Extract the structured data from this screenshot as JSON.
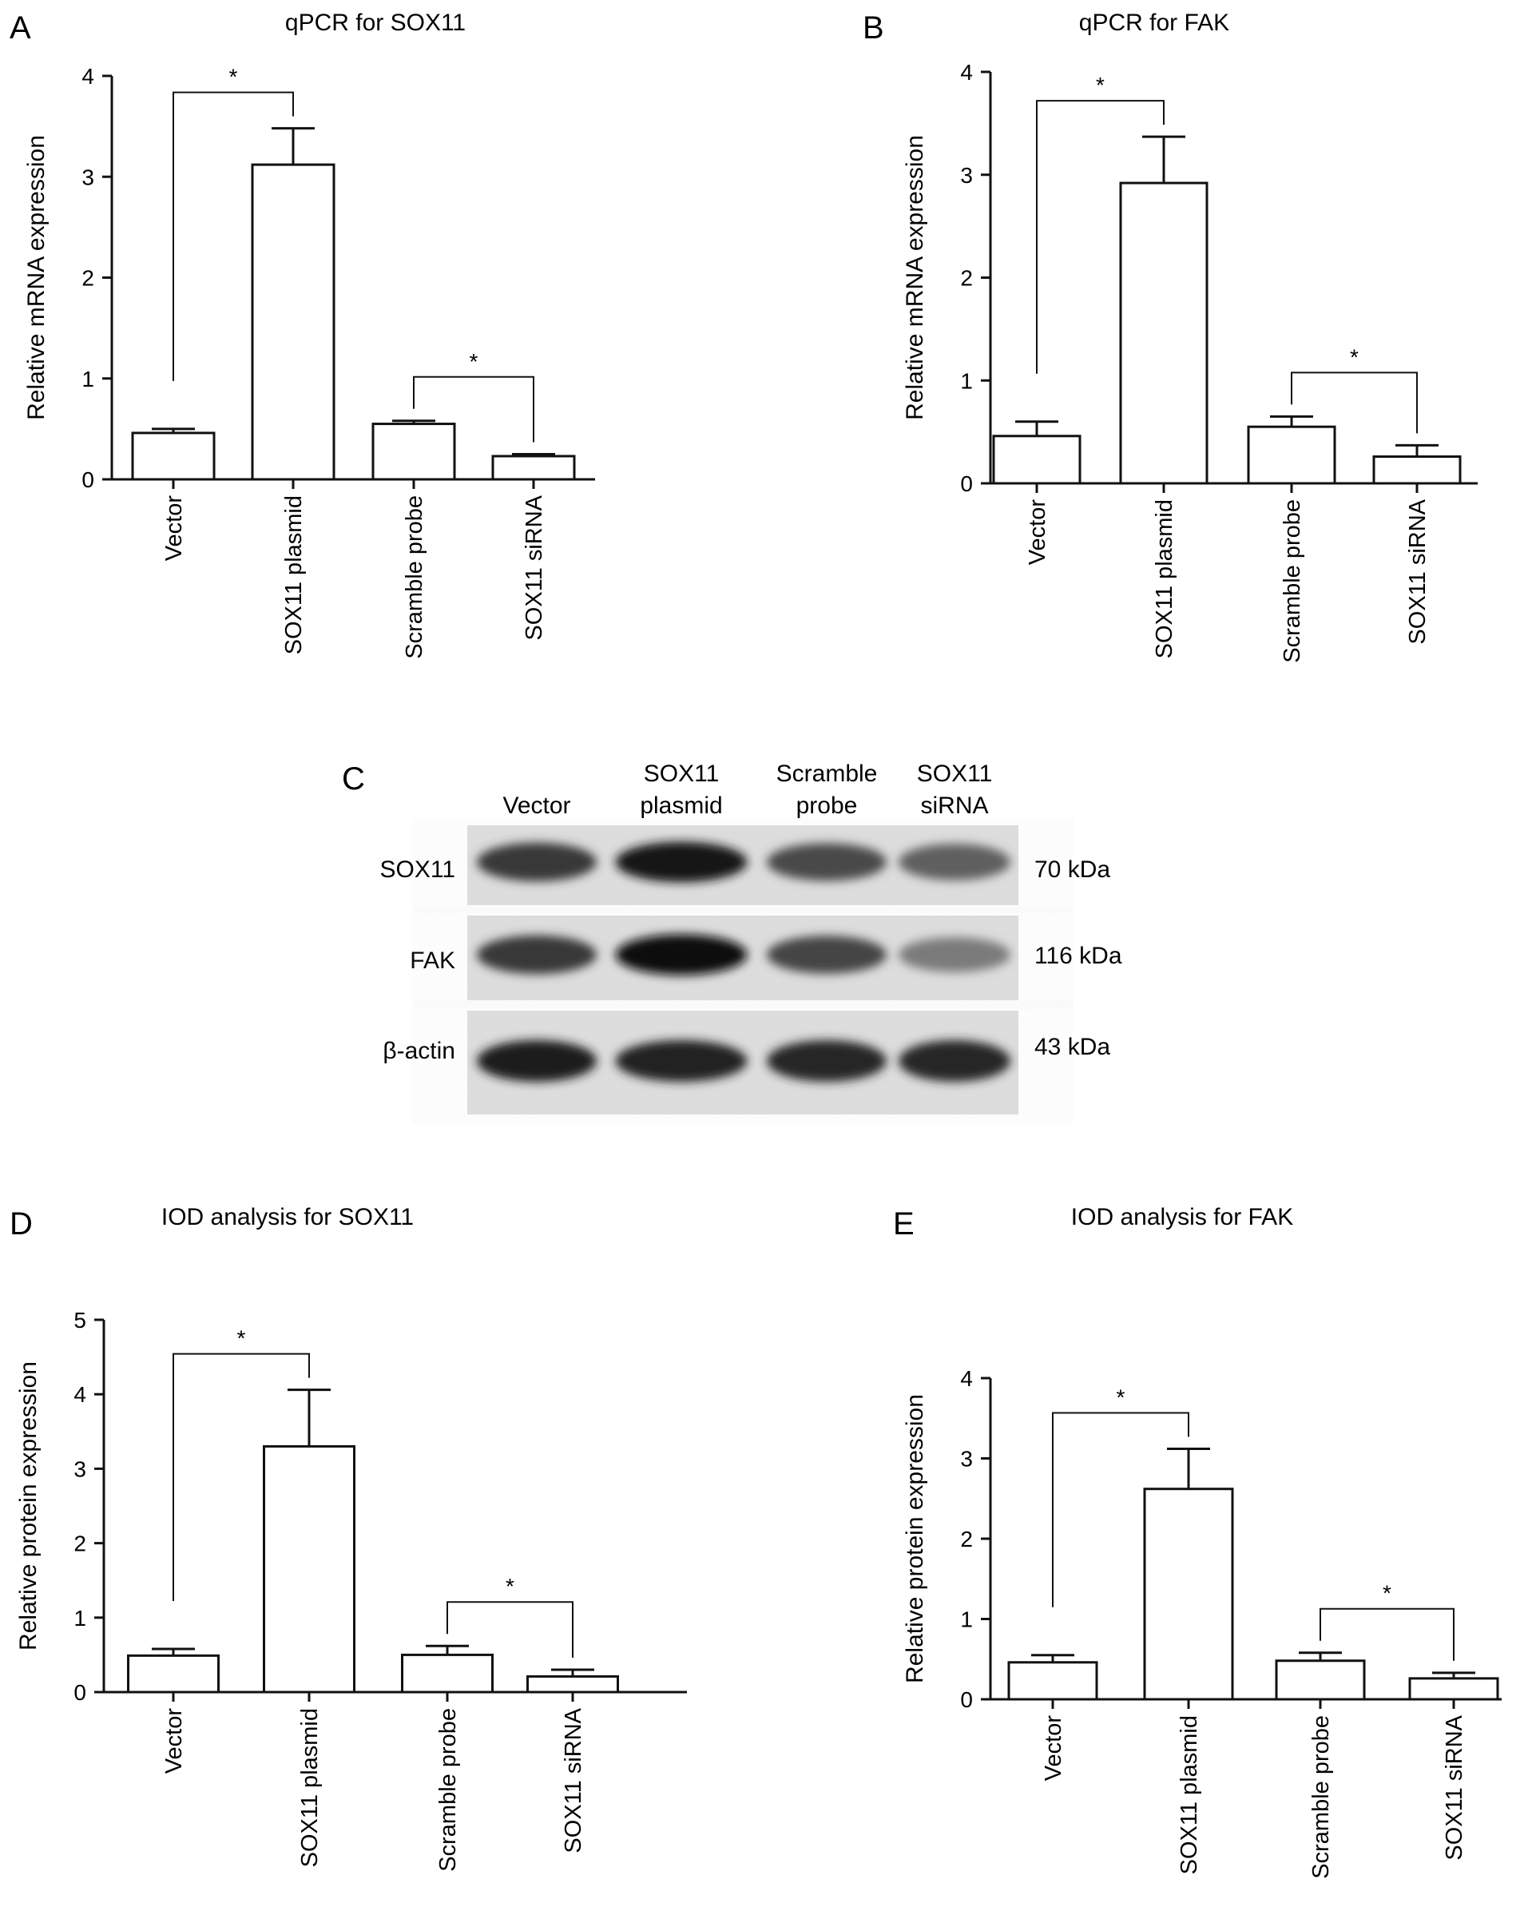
{
  "figure": {
    "panel_letters": [
      "A",
      "B",
      "C",
      "D",
      "E"
    ]
  },
  "chart_data": [
    {
      "panel": "A",
      "type": "bar",
      "title": "qPCR for SOX11",
      "ylabel": "Relative mRNA expression",
      "xlabel": "",
      "categories": [
        "Vector",
        "SOX11 plasmid",
        "Scramble probe",
        "SOX11 siRNA"
      ],
      "values": [
        0.46,
        3.12,
        0.55,
        0.23
      ],
      "errors": [
        0.04,
        0.36,
        0.03,
        0.02
      ],
      "ylim": [
        0,
        4
      ],
      "yticks": [
        0,
        1,
        2,
        3,
        4
      ],
      "significance": [
        {
          "pair": [
            0,
            1
          ],
          "label": "*"
        },
        {
          "pair": [
            2,
            3
          ],
          "label": "*"
        }
      ]
    },
    {
      "panel": "B",
      "type": "bar",
      "title": "qPCR for FAK",
      "ylabel": "Relative mRNA expression",
      "xlabel": "",
      "categories": [
        "Vector",
        "SOX11 plasmid",
        "Scramble probe",
        "SOX11 siRNA"
      ],
      "values": [
        0.46,
        2.92,
        0.55,
        0.26
      ],
      "errors": [
        0.14,
        0.45,
        0.1,
        0.11
      ],
      "ylim": [
        0,
        4
      ],
      "yticks": [
        0,
        1,
        2,
        3,
        4
      ],
      "significance": [
        {
          "pair": [
            0,
            1
          ],
          "label": "*"
        },
        {
          "pair": [
            2,
            3
          ],
          "label": "*"
        }
      ]
    },
    {
      "panel": "D",
      "type": "bar",
      "title": "IOD analysis for SOX11",
      "ylabel": "Relative protein expression",
      "xlabel": "",
      "categories": [
        "Vector",
        "SOX11 plasmid",
        "Scramble probe",
        "SOX11 siRNA"
      ],
      "values": [
        0.49,
        3.3,
        0.5,
        0.21
      ],
      "errors": [
        0.09,
        0.76,
        0.12,
        0.09
      ],
      "ylim": [
        0,
        5
      ],
      "yticks": [
        0,
        1,
        2,
        3,
        4,
        5
      ],
      "significance": [
        {
          "pair": [
            0,
            1
          ],
          "label": "*"
        },
        {
          "pair": [
            2,
            3
          ],
          "label": "*"
        }
      ]
    },
    {
      "panel": "E",
      "type": "bar",
      "title": "IOD analysis for FAK",
      "ylabel": "Relative protein expression",
      "xlabel": "",
      "categories": [
        "Vector",
        "SOX11 plasmid",
        "Scramble probe",
        "SOX11 siRNA"
      ],
      "values": [
        0.46,
        2.62,
        0.48,
        0.26
      ],
      "errors": [
        0.09,
        0.5,
        0.1,
        0.07
      ],
      "ylim": [
        0,
        4
      ],
      "yticks": [
        0,
        1,
        2,
        3,
        4
      ],
      "significance": [
        {
          "pair": [
            0,
            1
          ],
          "label": "*"
        },
        {
          "pair": [
            2,
            3
          ],
          "label": "*"
        }
      ]
    }
  ],
  "western_blot": {
    "panel": "C",
    "lanes": [
      {
        "line1": "",
        "line2": "Vector"
      },
      {
        "line1": "SOX11",
        "line2": "plasmid"
      },
      {
        "line1": "Scramble",
        "line2": "probe"
      },
      {
        "line1": "SOX11",
        "line2": "siRNA"
      }
    ],
    "rows": [
      {
        "label": "SOX11",
        "mw": "70 kDa",
        "intensities": [
          0.78,
          0.92,
          0.7,
          0.6
        ]
      },
      {
        "label": "FAK",
        "mw": "116 kDa",
        "intensities": [
          0.78,
          0.95,
          0.72,
          0.48
        ]
      },
      {
        "label": "β-actin",
        "mw": "43 kDa",
        "intensities": [
          0.9,
          0.88,
          0.86,
          0.85
        ]
      }
    ]
  }
}
